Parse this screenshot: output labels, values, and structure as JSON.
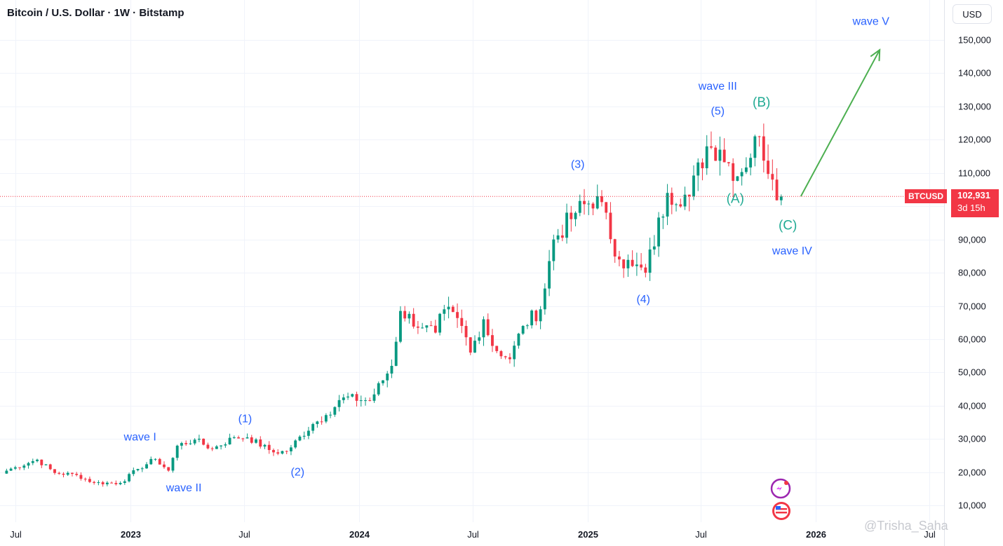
{
  "header": {
    "title": "Bitcoin / U.S. Dollar · 1W · Bitstamp",
    "currency": "USD"
  },
  "price_badge": {
    "symbol": "BTCUSD",
    "price": "102,931",
    "countdown": "3d 15h"
  },
  "watermark": "@Trisha_Saha",
  "colors": {
    "up": "#089981",
    "down": "#f23645",
    "label": "#2962ff",
    "teal": "#22ab94",
    "arrow": "#4caf50",
    "grid": "#f0f3fa"
  },
  "chart_data": {
    "type": "candlestick",
    "title": "Bitcoin / U.S. Dollar · 1W · Bitstamp",
    "ylim": [
      5000,
      162000
    ],
    "y_ticks": [
      10000,
      20000,
      30000,
      40000,
      50000,
      60000,
      70000,
      80000,
      90000,
      100000,
      110000,
      120000,
      130000,
      140000,
      150000
    ],
    "y_tick_labels": [
      "10,000",
      "20,000",
      "30,000",
      "40,000",
      "50,000",
      "60,000",
      "70,000",
      "80,000",
      "90,000",
      "100,000",
      "110,000",
      "120,000",
      "130,000",
      "140,000",
      "150,000"
    ],
    "x_ticks": [
      {
        "date": "2022-07-01",
        "label": "Jul"
      },
      {
        "date": "2023-01-01",
        "label": "2023"
      },
      {
        "date": "2023-07-01",
        "label": "Jul"
      },
      {
        "date": "2024-01-01",
        "label": "2024"
      },
      {
        "date": "2024-07-01",
        "label": "Jul"
      },
      {
        "date": "2025-01-01",
        "label": "2025"
      },
      {
        "date": "2025-07-01",
        "label": "Jul"
      },
      {
        "date": "2026-01-01",
        "label": "2026"
      },
      {
        "date": "2026-07-01",
        "label": "Jul"
      }
    ],
    "x_range": [
      "2022-06-06",
      "2026-07-25"
    ],
    "grid": true,
    "last_price": 102931,
    "anchors": [
      [
        "2022-06-13",
        20000
      ],
      [
        "2022-07-04",
        21500
      ],
      [
        "2022-08-08",
        23800
      ],
      [
        "2022-09-05",
        19800
      ],
      [
        "2022-10-10",
        19200
      ],
      [
        "2022-11-07",
        16800
      ],
      [
        "2022-12-19",
        16800
      ],
      [
        "2023-01-16",
        21000
      ],
      [
        "2023-02-13",
        24000
      ],
      [
        "2023-03-06",
        20500
      ],
      [
        "2023-03-20",
        28000
      ],
      [
        "2023-04-17",
        29800
      ],
      [
        "2023-05-15",
        27000
      ],
      [
        "2023-06-19",
        30500
      ],
      [
        "2023-07-10",
        30500
      ],
      [
        "2023-08-21",
        26000
      ],
      [
        "2023-09-11",
        26300
      ],
      [
        "2023-10-23",
        34500
      ],
      [
        "2023-11-13",
        37200
      ],
      [
        "2023-12-11",
        42500
      ],
      [
        "2024-01-22",
        41500
      ],
      [
        "2024-02-26",
        52000
      ],
      [
        "2024-03-11",
        68500
      ],
      [
        "2024-04-15",
        63500
      ],
      [
        "2024-05-06",
        62000
      ],
      [
        "2024-05-20",
        69000
      ],
      [
        "2024-06-17",
        64000
      ],
      [
        "2024-07-01",
        56000
      ],
      [
        "2024-07-22",
        66000
      ],
      [
        "2024-08-05",
        58000
      ],
      [
        "2024-09-02",
        54000
      ],
      [
        "2024-09-23",
        64000
      ],
      [
        "2024-10-21",
        69000
      ],
      [
        "2024-11-11",
        90000
      ],
      [
        "2024-12-16",
        98000
      ],
      [
        "2025-01-20",
        103000
      ],
      [
        "2025-02-24",
        84000
      ],
      [
        "2025-03-17",
        82000
      ],
      [
        "2025-04-07",
        80000
      ],
      [
        "2025-05-12",
        104000
      ],
      [
        "2025-06-16",
        103000
      ],
      [
        "2025-07-14",
        118000
      ],
      [
        "2025-08-04",
        117000
      ],
      [
        "2025-09-01",
        109000
      ],
      [
        "2025-10-06",
        121000
      ],
      [
        "2025-10-27",
        108000
      ],
      [
        "2025-11-10",
        102931
      ]
    ],
    "annotations": [
      {
        "text": "wave I",
        "date": "2023-01-16",
        "price": 29500,
        "color": "label",
        "size": 16
      },
      {
        "text": "wave II",
        "date": "2023-03-27",
        "price": 14300,
        "color": "label",
        "size": 16
      },
      {
        "text": "(1)",
        "date": "2023-07-03",
        "price": 35000,
        "color": "label",
        "size": 16
      },
      {
        "text": "(2)",
        "date": "2023-09-25",
        "price": 19000,
        "color": "label",
        "size": 16
      },
      {
        "text": "(3)",
        "date": "2024-12-16",
        "price": 111500,
        "color": "label",
        "size": 16
      },
      {
        "text": "(4)",
        "date": "2025-03-31",
        "price": 71000,
        "color": "label",
        "size": 16
      },
      {
        "text": "(5)",
        "date": "2025-07-28",
        "price": 127500,
        "color": "label",
        "size": 16
      },
      {
        "text": "wave III",
        "date": "2025-07-28",
        "price": 135000,
        "color": "label",
        "size": 16
      },
      {
        "text": "(A)",
        "date": "2025-08-25",
        "price": 101000,
        "color": "teal",
        "size": 19
      },
      {
        "text": "(B)",
        "date": "2025-10-06",
        "price": 130000,
        "color": "teal",
        "size": 19
      },
      {
        "text": "(C)",
        "date": "2025-11-17",
        "price": 93000,
        "color": "teal",
        "size": 19
      },
      {
        "text": "wave IV",
        "date": "2025-11-24",
        "price": 85500,
        "color": "label",
        "size": 16
      },
      {
        "text": "wave V",
        "date": "2026-03-30",
        "price": 154500,
        "color": "label",
        "size": 16
      }
    ],
    "projection": {
      "from": [
        "2025-12-08",
        103000
      ],
      "to": [
        "2026-04-13",
        147000
      ]
    }
  }
}
